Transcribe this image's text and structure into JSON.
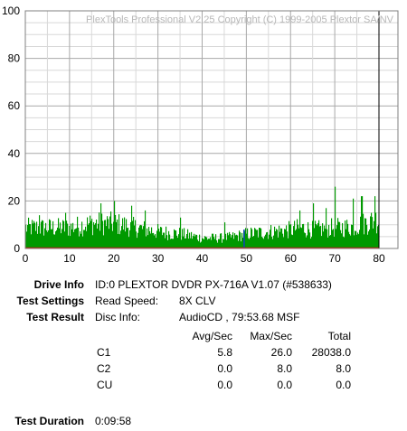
{
  "chart_data": {
    "type": "bar",
    "title": "PlexTools Professional V2.25 Copyright (C) 1999-2005 Plextor SA/NV",
    "xlim": [
      0,
      80
    ],
    "ylim": [
      0,
      100
    ],
    "x_ticks": [
      "0",
      "10",
      "20",
      "30",
      "40",
      "50",
      "60",
      "70",
      "80"
    ],
    "y_ticks": [
      "0",
      "20",
      "40",
      "60",
      "80",
      "100"
    ],
    "grid": true,
    "series": [
      {
        "label": "C1",
        "color": "#009900",
        "x": [
          0,
          5,
          10,
          15,
          20,
          25,
          30,
          35,
          40,
          45,
          48,
          50,
          55,
          60,
          62,
          65,
          70,
          72,
          75,
          78,
          80
        ],
        "y": [
          10,
          10,
          10,
          12,
          12,
          10,
          8,
          7,
          5,
          5,
          6,
          7,
          8,
          9,
          10,
          9,
          10,
          10,
          11,
          13,
          14
        ],
        "peaks": [
          [
            3,
            14
          ],
          [
            9,
            15
          ],
          [
            17,
            19
          ],
          [
            20,
            20
          ],
          [
            24,
            18
          ],
          [
            27,
            16
          ],
          [
            35,
            13
          ],
          [
            45,
            11
          ],
          [
            62,
            16
          ],
          [
            65,
            19
          ],
          [
            68,
            17
          ],
          [
            70,
            26
          ],
          [
            74,
            21
          ],
          [
            76,
            22
          ],
          [
            79,
            22
          ]
        ]
      },
      {
        "label": "C2",
        "color": "#1040c0",
        "x": [
          49.5
        ],
        "y": [
          8
        ]
      },
      {
        "label": "CU",
        "color": "#d00000",
        "x": [
          0,
          80
        ],
        "y": [
          0,
          0
        ]
      }
    ]
  },
  "info": {
    "drive_info_label": "Drive Info",
    "drive_info": "ID:0 PLEXTOR DVDR PX-716A V1.07 (#538633)",
    "test_settings_label": "Test Settings",
    "read_speed_label": "Read Speed:",
    "read_speed": "8X CLV",
    "test_result_label": "Test Result",
    "disc_info_label": "Disc Info:",
    "disc_info": "AudioCD , 79:53.68 MSF",
    "headers": {
      "avg": "Avg/Sec",
      "max": "Max/Sec",
      "total": "Total"
    },
    "rows": [
      {
        "name": "C1",
        "avg": "5.8",
        "max": "26.0",
        "total": "28038.0"
      },
      {
        "name": "C2",
        "avg": "0.0",
        "max": "8.0",
        "total": "8.0"
      },
      {
        "name": "CU",
        "avg": "0.0",
        "max": "0.0",
        "total": "0.0"
      }
    ],
    "duration_label": "Test Duration",
    "duration": "0:09:58"
  }
}
